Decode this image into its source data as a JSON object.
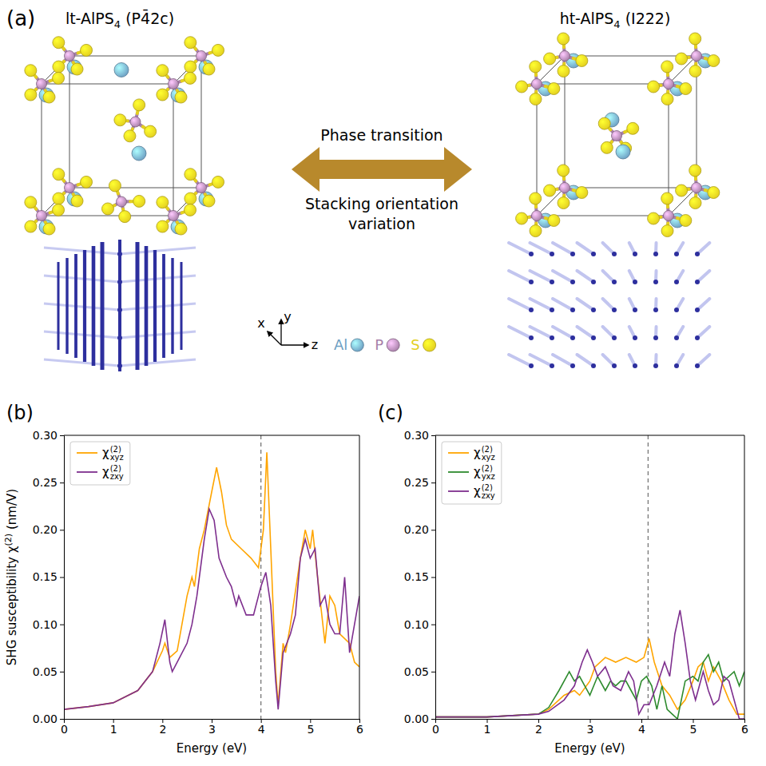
{
  "panel_a": {
    "label": "(a)",
    "left_title": [
      "lt-AlPS",
      "4",
      " (P4̄2c)"
    ],
    "right_title": [
      "ht-AlPS",
      "4",
      " (I222)"
    ],
    "arrow_top": "Phase transition",
    "arrow_bottom": "Stacking orientation variation",
    "axes": [
      "x",
      "y",
      "z"
    ],
    "atoms": [
      {
        "symbol": "Al",
        "color": "#6d9fc3"
      },
      {
        "symbol": "P",
        "color": "#a77fa8"
      },
      {
        "symbol": "S",
        "color": "#e3cf1f"
      }
    ]
  },
  "chart_data": [
    {
      "type": "line",
      "panel_label": "(b)",
      "xlabel": "Energy (eV)",
      "ylabel": {
        "text": "SHG susceptibility χ",
        "sup": "(2)",
        "suffix": "(nm/V)"
      },
      "xlim": [
        0,
        6
      ],
      "xticks": [
        0,
        1,
        2,
        3,
        4,
        5,
        6
      ],
      "ylim": [
        0,
        0.3
      ],
      "yticks": [
        {
          "value": 0,
          "label": "0.00"
        },
        {
          "value": 0.05,
          "label": "0.05"
        },
        {
          "value": 0.1,
          "label": "0.10"
        },
        {
          "value": 0.15,
          "label": "0.15"
        },
        {
          "value": 0.2,
          "label": "0.20"
        },
        {
          "value": 0.25,
          "label": "0.25"
        },
        {
          "value": 0.3,
          "label": "0.30"
        }
      ],
      "grid": false,
      "legend": "upper left",
      "vline": 4.0,
      "series": [
        {
          "name": "χ",
          "sub": "xyz",
          "sup": "(2)",
          "color": "#ffa500",
          "x": [
            0,
            0.5,
            1,
            1.5,
            1.8,
            2.0,
            2.05,
            2.15,
            2.3,
            2.5,
            2.6,
            2.65,
            2.75,
            2.85,
            3.0,
            3.1,
            3.2,
            3.3,
            3.4,
            3.6,
            3.8,
            3.95,
            4.05,
            4.12,
            4.2,
            4.3,
            4.35,
            4.45,
            4.5,
            4.6,
            4.8,
            4.9,
            5.0,
            5.05,
            5.15,
            5.3,
            5.4,
            5.5,
            5.6,
            5.8,
            5.9,
            6.0
          ],
          "values": [
            0.01,
            0.013,
            0.017,
            0.03,
            0.05,
            0.072,
            0.08,
            0.065,
            0.072,
            0.13,
            0.15,
            0.14,
            0.18,
            0.2,
            0.24,
            0.266,
            0.24,
            0.205,
            0.19,
            0.18,
            0.17,
            0.16,
            0.2,
            0.282,
            0.18,
            0.05,
            0.015,
            0.08,
            0.07,
            0.1,
            0.17,
            0.2,
            0.18,
            0.2,
            0.15,
            0.08,
            0.13,
            0.12,
            0.09,
            0.08,
            0.06,
            0.055
          ]
        },
        {
          "name": "χ",
          "sub": "zxy",
          "sup": "(2)",
          "color": "#7e2f8e",
          "x": [
            0,
            0.5,
            1,
            1.5,
            1.8,
            1.95,
            2.05,
            2.15,
            2.2,
            2.35,
            2.5,
            2.6,
            2.7,
            2.85,
            2.95,
            3.05,
            3.15,
            3.3,
            3.4,
            3.5,
            3.55,
            3.7,
            3.85,
            4.0,
            4.1,
            4.2,
            4.3,
            4.35,
            4.45,
            4.6,
            4.7,
            4.8,
            4.9,
            5.0,
            5.1,
            5.2,
            5.3,
            5.4,
            5.5,
            5.6,
            5.7,
            5.8,
            5.9,
            6.0
          ],
          "values": [
            0.01,
            0.013,
            0.017,
            0.03,
            0.05,
            0.08,
            0.105,
            0.06,
            0.05,
            0.065,
            0.08,
            0.1,
            0.13,
            0.19,
            0.222,
            0.21,
            0.17,
            0.15,
            0.14,
            0.12,
            0.13,
            0.11,
            0.11,
            0.14,
            0.155,
            0.12,
            0.04,
            0.01,
            0.07,
            0.09,
            0.11,
            0.17,
            0.19,
            0.17,
            0.18,
            0.12,
            0.13,
            0.1,
            0.09,
            0.09,
            0.15,
            0.07,
            0.1,
            0.13
          ]
        }
      ]
    },
    {
      "type": "line",
      "panel_label": "(c)",
      "xlabel": "Energy (eV)",
      "xlim": [
        0,
        6
      ],
      "xticks": [
        0,
        1,
        2,
        3,
        4,
        5,
        6
      ],
      "ylim": [
        0,
        0.3
      ],
      "yticks": [
        {
          "value": 0,
          "label": "0.00"
        },
        {
          "value": 0.05,
          "label": "0.05"
        },
        {
          "value": 0.1,
          "label": "0.10"
        },
        {
          "value": 0.15,
          "label": "0.15"
        },
        {
          "value": 0.2,
          "label": "0.20"
        },
        {
          "value": 0.25,
          "label": "0.25"
        },
        {
          "value": 0.3,
          "label": "0.30"
        }
      ],
      "grid": false,
      "legend": "upper left",
      "vline": 4.13,
      "series": [
        {
          "name": "χ",
          "sub": "xyz",
          "sup": "(2)",
          "color": "#ffa500",
          "x": [
            0,
            1,
            2,
            2.2,
            2.5,
            2.7,
            2.8,
            3.0,
            3.1,
            3.3,
            3.5,
            3.7,
            3.9,
            4.05,
            4.15,
            4.25,
            4.4,
            4.55,
            4.7,
            4.85,
            5.0,
            5.1,
            5.2,
            5.3,
            5.4,
            5.55,
            5.7,
            5.85,
            6.0
          ],
          "values": [
            0.002,
            0.002,
            0.005,
            0.01,
            0.025,
            0.03,
            0.025,
            0.04,
            0.055,
            0.065,
            0.06,
            0.065,
            0.06,
            0.065,
            0.085,
            0.06,
            0.035,
            0.025,
            0.01,
            0.02,
            0.04,
            0.055,
            0.06,
            0.04,
            0.055,
            0.04,
            0.02,
            0.005,
            0.005
          ]
        },
        {
          "name": "χ",
          "sub": "yxz",
          "sup": "(2)",
          "color": "#2e8b2e",
          "x": [
            0,
            1,
            2,
            2.2,
            2.4,
            2.6,
            2.7,
            2.8,
            2.9,
            3.0,
            3.15,
            3.3,
            3.4,
            3.5,
            3.6,
            3.7,
            3.8,
            3.9,
            4.0,
            4.1,
            4.2,
            4.3,
            4.4,
            4.5,
            4.6,
            4.7,
            4.85,
            5.0,
            5.1,
            5.2,
            5.3,
            5.4,
            5.5,
            5.6,
            5.7,
            5.8,
            5.9,
            6.0
          ],
          "values": [
            0.002,
            0.002,
            0.005,
            0.012,
            0.03,
            0.05,
            0.04,
            0.045,
            0.035,
            0.025,
            0.045,
            0.03,
            0.04,
            0.035,
            0.04,
            0.04,
            0.03,
            0.02,
            0.04,
            0.045,
            0.035,
            0.01,
            0.035,
            0.01,
            0.005,
            0.0,
            0.04,
            0.045,
            0.04,
            0.06,
            0.068,
            0.05,
            0.06,
            0.04,
            0.045,
            0.05,
            0.035,
            0.05
          ]
        },
        {
          "name": "χ",
          "sub": "zxy",
          "sup": "(2)",
          "color": "#7e2f8e",
          "x": [
            0,
            1,
            2,
            2.2,
            2.5,
            2.7,
            2.85,
            2.95,
            3.05,
            3.15,
            3.3,
            3.45,
            3.6,
            3.75,
            3.85,
            3.95,
            4.05,
            4.15,
            4.3,
            4.45,
            4.55,
            4.65,
            4.75,
            4.85,
            4.95,
            5.05,
            5.2,
            5.3,
            5.4,
            5.5,
            5.6,
            5.7,
            5.8,
            5.9,
            6.0
          ],
          "values": [
            0.002,
            0.002,
            0.005,
            0.008,
            0.02,
            0.035,
            0.06,
            0.073,
            0.06,
            0.045,
            0.055,
            0.035,
            0.03,
            0.05,
            0.04,
            0.005,
            0.015,
            0.015,
            0.035,
            0.06,
            0.045,
            0.09,
            0.115,
            0.08,
            0.04,
            0.02,
            0.05,
            0.03,
            0.015,
            0.02,
            0.045,
            0.04,
            0.02,
            0.0,
            0.0
          ]
        }
      ]
    }
  ]
}
